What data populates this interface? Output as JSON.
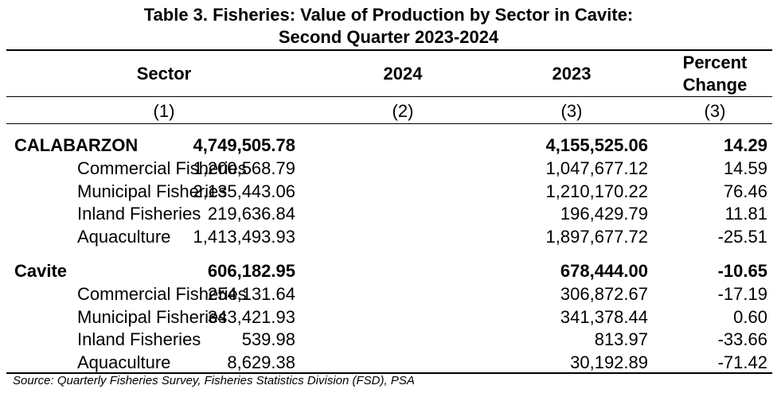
{
  "title_line1": "Table 3. Fisheries: Value of Production by Sector in Cavite:",
  "title_line2": "Second Quarter 2023-2024",
  "headers": {
    "sector": "Sector",
    "col2024": "2024",
    "col2023": "2023",
    "pct_line1": "Percent",
    "pct_line2": "Change"
  },
  "col_numbers": [
    "(1)",
    "(2)",
    "(3)",
    "(3)"
  ],
  "groups": [
    {
      "name": "CALABARZON",
      "v2024": "4,749,505.78",
      "v2023": "4,155,525.06",
      "pct": "14.29",
      "rows": [
        {
          "name": "Commercial Fisheries",
          "v2024": "1,200,568.79",
          "v2023": "1,047,677.12",
          "pct": "14.59"
        },
        {
          "name": "Municipal Fisheries",
          "v2024": "2,135,443.06",
          "v2023": "1,210,170.22",
          "pct": "76.46"
        },
        {
          "name": "Inland Fisheries",
          "v2024": "219,636.84",
          "v2023": "196,429.79",
          "pct": "11.81"
        },
        {
          "name": "Aquaculture",
          "v2024": "1,413,493.93",
          "v2023": "1,897,677.72",
          "pct": "-25.51"
        }
      ]
    },
    {
      "name": "Cavite",
      "v2024": "606,182.95",
      "v2023": "678,444.00",
      "pct": "-10.65",
      "rows": [
        {
          "name": "Commercial Fisheries",
          "v2024": "254,131.64",
          "v2023": "306,872.67",
          "pct": "-17.19"
        },
        {
          "name": "Municipal Fisheries",
          "v2024": "343,421.93",
          "v2023": "341,378.44",
          "pct": "0.60"
        },
        {
          "name": "Inland Fisheries",
          "v2024": "539.98",
          "v2023": "813.97",
          "pct": "-33.66"
        },
        {
          "name": "Aquaculture",
          "v2024": "8,629.38",
          "v2023": "30,192.89",
          "pct": "-71.42"
        }
      ]
    }
  ],
  "source": "Source: Quarterly Fisheries Survey, Fisheries Statistics Division (FSD), PSA"
}
